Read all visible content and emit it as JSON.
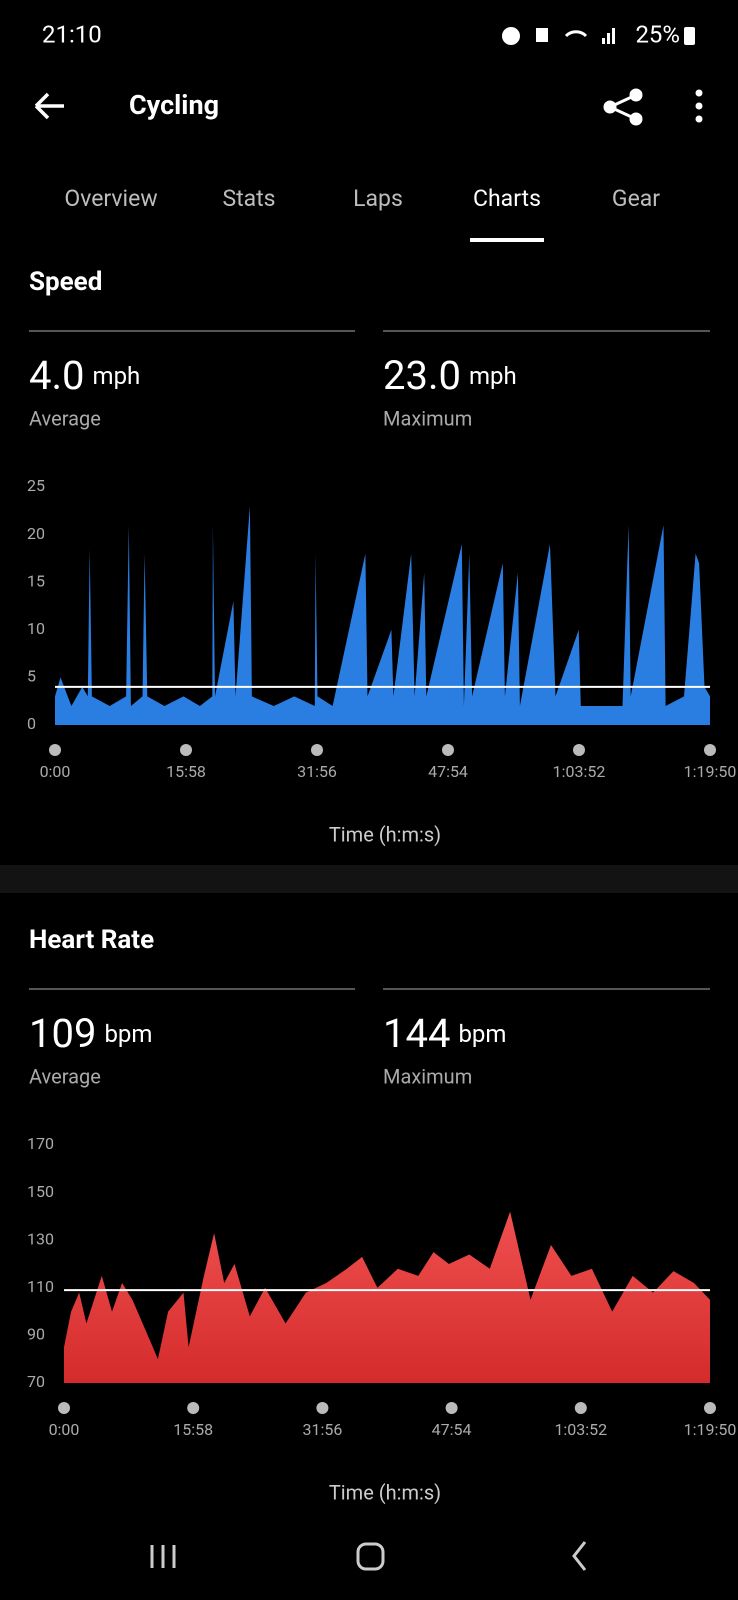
{
  "status_bar": {
    "time": "21:10",
    "battery": "25%"
  },
  "header": {
    "title": "Cycling"
  },
  "tabs": [
    "Overview",
    "Stats",
    "Laps",
    "Charts",
    "Gear"
  ],
  "sections": [
    {
      "title": "Speed",
      "stats": [
        {
          "value": "4.0",
          "unit": "mph",
          "label": "Average"
        },
        {
          "value": "23.0",
          "unit": "mph",
          "label": "Maximum"
        }
      ],
      "chart_data": {
        "type": "area",
        "color": "#2a7de1",
        "xlabel": "Time (h:m:s)",
        "average": 4.0,
        "x": [
          0,
          40,
          120,
          200,
          240,
          254,
          270,
          400,
          520,
          540,
          555,
          640,
          655,
          675,
          800,
          940,
          1060,
          1150,
          1155,
          1170,
          1305,
          1320,
          1425,
          1440,
          1600,
          1750,
          1900,
          1905,
          1920,
          2030,
          2270,
          2285,
          2460,
          2475,
          2605,
          2630,
          2700,
          2715,
          2975,
          2990,
          3030,
          3050,
          3275,
          3290,
          3385,
          3400,
          3620,
          3660,
          3830,
          3845,
          4150,
          4195,
          4210,
          4450,
          4465,
          4600,
          4685,
          4710,
          4750,
          4790
        ],
        "values": [
          3,
          5,
          2,
          4,
          3,
          18.5,
          3,
          2,
          3,
          21,
          2,
          3,
          18,
          3,
          2,
          3,
          2,
          3,
          21,
          3,
          13,
          3,
          23,
          3,
          2,
          3,
          2,
          18,
          3,
          2,
          18,
          3,
          10,
          3,
          18,
          3,
          16,
          3,
          19,
          2,
          18,
          3,
          17,
          3,
          16,
          2,
          19,
          3,
          10,
          2,
          2,
          21,
          3,
          21,
          2,
          3,
          18,
          17,
          4,
          3
        ],
        "xlim": [
          0,
          4790
        ],
        "xticks": [
          {
            "value": 0,
            "label": "0:00"
          },
          {
            "value": 958,
            "label": "15:58"
          },
          {
            "value": 1916,
            "label": "31:56"
          },
          {
            "value": 2874,
            "label": "47:54"
          },
          {
            "value": 3832,
            "label": "1:03:52"
          },
          {
            "value": 4790,
            "label": "1:19:50"
          }
        ],
        "ylim": [
          0,
          25
        ],
        "yticks": [
          0,
          5,
          10,
          15,
          20,
          25
        ]
      }
    },
    {
      "title": "Heart Rate",
      "stats": [
        {
          "value": "109",
          "unit": "bpm",
          "label": "Average"
        },
        {
          "value": "144",
          "unit": "bpm",
          "label": "Maximum"
        }
      ],
      "chart_data": {
        "type": "area",
        "color": "#e03a3a",
        "xlabel": "Time (h:m:s)",
        "average": 109,
        "x": [
          0,
          53,
          113,
          166,
          280,
          356,
          431,
          507,
          659,
          696,
          772,
          886,
          924,
          1037,
          1113,
          1188,
          1264,
          1378,
          1491,
          1643,
          1794,
          1945,
          2097,
          2210,
          2324,
          2475,
          2627,
          2740,
          2854,
          3005,
          3157,
          3308,
          3459,
          3611,
          3762,
          3914,
          4065,
          4217,
          4368,
          4519,
          4671,
          4790
        ],
        "values": [
          85,
          100,
          108,
          95,
          115,
          100,
          112,
          105,
          85,
          80,
          100,
          108,
          85,
          115,
          133,
          112,
          120,
          98,
          110,
          95,
          108,
          112,
          118,
          123,
          110,
          118,
          115,
          125,
          120,
          124,
          118,
          142,
          105,
          128,
          115,
          118,
          100,
          115,
          108,
          117,
          112,
          105
        ],
        "xlim": [
          0,
          4790
        ],
        "xticks": [
          {
            "value": 0,
            "label": "0:00"
          },
          {
            "value": 958,
            "label": "15:58"
          },
          {
            "value": 1916,
            "label": "31:56"
          },
          {
            "value": 2874,
            "label": "47:54"
          },
          {
            "value": 3832,
            "label": "1:03:52"
          },
          {
            "value": 4790,
            "label": "1:19:50"
          }
        ],
        "ylim": [
          70,
          170
        ],
        "yticks": [
          70,
          90,
          110,
          130,
          150,
          170
        ]
      }
    }
  ]
}
